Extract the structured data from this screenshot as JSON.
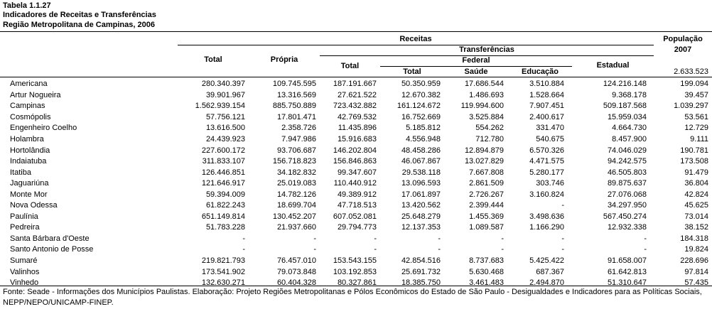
{
  "header": {
    "table_number": "Tabela 1.1.27",
    "title": "Indicadores de Receitas e Transferências",
    "subtitle": "Região Metropolitana de Campinas, 2006"
  },
  "columns": {
    "receitas": "Receitas",
    "populacao": "População",
    "populacao_year": "2007",
    "total": "Total",
    "propria": "Própria",
    "transferencias": "Transferências",
    "transf_total": "Total",
    "federal": "Federal",
    "federal_total": "Total",
    "saude": "Saúde",
    "educacao": "Educação",
    "estadual": "Estadual"
  },
  "total_population": "2.633.523",
  "rows": [
    {
      "name": "Americana",
      "total": "280.340.397",
      "propria": "109.745.595",
      "transf_total": "187.191.667",
      "fed_total": "50.350.959",
      "saude": "17.686.544",
      "educacao": "3.510.884",
      "estadual": "124.216.148",
      "populacao": "199.094"
    },
    {
      "name": "Artur Nogueira",
      "total": "39.901.967",
      "propria": "13.316.569",
      "transf_total": "27.621.522",
      "fed_total": "12.670.382",
      "saude": "1.486.693",
      "educacao": "1.528.664",
      "estadual": "9.368.178",
      "populacao": "39.457"
    },
    {
      "name": "Campinas",
      "total": "1.562.939.154",
      "propria": "885.750.889",
      "transf_total": "723.432.882",
      "fed_total": "161.124.672",
      "saude": "119.994.600",
      "educacao": "7.907.451",
      "estadual": "509.187.568",
      "populacao": "1.039.297"
    },
    {
      "name": "Cosmópolis",
      "total": "57.756.121",
      "propria": "17.801.471",
      "transf_total": "42.769.532",
      "fed_total": "16.752.669",
      "saude": "3.525.884",
      "educacao": "2.400.617",
      "estadual": "15.959.034",
      "populacao": "53.561"
    },
    {
      "name": "Engenheiro Coelho",
      "total": "13.616.500",
      "propria": "2.358.726",
      "transf_total": "11.435.896",
      "fed_total": "5.185.812",
      "saude": "554.262",
      "educacao": "331.470",
      "estadual": "4.664.730",
      "populacao": "12.729"
    },
    {
      "name": "Holambra",
      "total": "24.439.923",
      "propria": "7.947.986",
      "transf_total": "15.916.683",
      "fed_total": "4.556.948",
      "saude": "712.780",
      "educacao": "540.675",
      "estadual": "8.457.900",
      "populacao": "9.111"
    },
    {
      "name": "Hortolândia",
      "total": "227.600.172",
      "propria": "93.706.687",
      "transf_total": "146.202.804",
      "fed_total": "48.458.286",
      "saude": "12.894.879",
      "educacao": "6.570.326",
      "estadual": "74.046.029",
      "populacao": "190.781"
    },
    {
      "name": "Indaiatuba",
      "total": "311.833.107",
      "propria": "156.718.823",
      "transf_total": "156.846.863",
      "fed_total": "46.067.867",
      "saude": "13.027.829",
      "educacao": "4.471.575",
      "estadual": "94.242.575",
      "populacao": "173.508"
    },
    {
      "name": "Itatiba",
      "total": "126.446.851",
      "propria": "34.182.832",
      "transf_total": "99.347.607",
      "fed_total": "29.538.118",
      "saude": "7.667.808",
      "educacao": "5.280.177",
      "estadual": "46.505.803",
      "populacao": "91.479"
    },
    {
      "name": "Jaguariúna",
      "total": "121.646.917",
      "propria": "25.019.083",
      "transf_total": "110.440.912",
      "fed_total": "13.096.593",
      "saude": "2.861.509",
      "educacao": "303.746",
      "estadual": "89.875.637",
      "populacao": "36.804"
    },
    {
      "name": "Monte Mor",
      "total": "59.394.009",
      "propria": "14.782.126",
      "transf_total": "49.389.912",
      "fed_total": "17.061.897",
      "saude": "2.726.267",
      "educacao": "3.160.824",
      "estadual": "27.076.068",
      "populacao": "42.824"
    },
    {
      "name": "Nova Odessa",
      "total": "61.822.243",
      "propria": "18.699.704",
      "transf_total": "47.718.513",
      "fed_total": "13.420.562",
      "saude": "2.399.444",
      "educacao": "-",
      "estadual": "34.297.950",
      "populacao": "45.625"
    },
    {
      "name": "Paulínia",
      "total": "651.149.814",
      "propria": "130.452.207",
      "transf_total": "607.052.081",
      "fed_total": "25.648.279",
      "saude": "1.455.369",
      "educacao": "3.498.636",
      "estadual": "567.450.274",
      "populacao": "73.014"
    },
    {
      "name": "Pedreira",
      "total": "51.783.228",
      "propria": "21.937.660",
      "transf_total": "29.794.773",
      "fed_total": "12.137.353",
      "saude": "1.089.587",
      "educacao": "1.166.290",
      "estadual": "12.932.338",
      "populacao": "38.152"
    },
    {
      "name": "Santa Bárbara d'Oeste",
      "total": "-",
      "propria": "-",
      "transf_total": "-",
      "fed_total": "-",
      "saude": "-",
      "educacao": "-",
      "estadual": "-",
      "populacao": "184.318"
    },
    {
      "name": "Santo Antonio de Posse",
      "total": "-",
      "propria": "-",
      "transf_total": "-",
      "fed_total": "-",
      "saude": "-",
      "educacao": "-",
      "estadual": "-",
      "populacao": "19.824"
    },
    {
      "name": "Sumaré",
      "total": "219.821.793",
      "propria": "76.457.010",
      "transf_total": "153.543.155",
      "fed_total": "42.854.516",
      "saude": "8.737.683",
      "educacao": "5.425.422",
      "estadual": "91.658.007",
      "populacao": "228.696"
    },
    {
      "name": "Valinhos",
      "total": "173.541.902",
      "propria": "79.073.848",
      "transf_total": "103.192.853",
      "fed_total": "25.691.732",
      "saude": "5.630.468",
      "educacao": "687.367",
      "estadual": "61.642.813",
      "populacao": "97.814"
    },
    {
      "name": "Vinhedo",
      "total": "132.630.271",
      "propria": "60.404.328",
      "transf_total": "80.327.861",
      "fed_total": "18.385.750",
      "saude": "3.461.483",
      "educacao": "2.494.870",
      "estadual": "51.310.647",
      "populacao": "57.435"
    }
  ],
  "footer": {
    "source": "Fonte: Seade - Informações dos Municípios Paulistas. Elaboração: Projeto Regiões Metropolitanas e Pólos Econômicos do Estado de São Paulo - Desigualdades e Indicadores para as Políticas Sociais, NEPP/NEPO/UNICAMP-FINEP."
  }
}
